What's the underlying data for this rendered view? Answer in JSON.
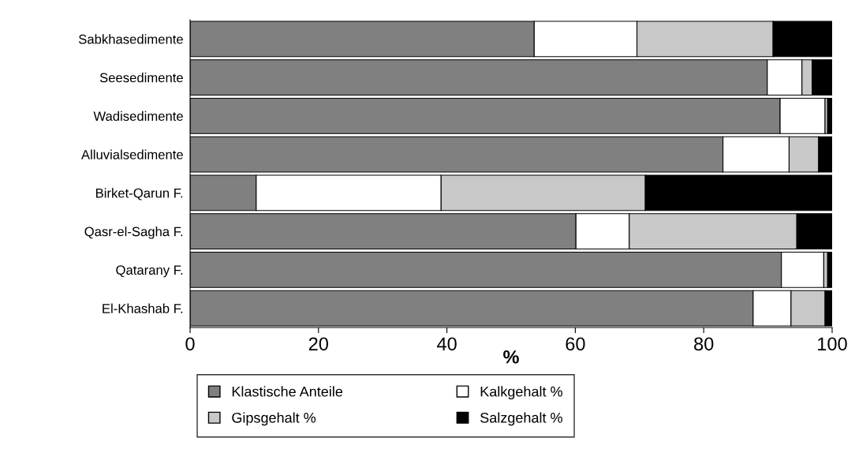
{
  "chart_data": {
    "type": "bar",
    "orientation": "horizontal",
    "stacked": true,
    "xlabel": "%",
    "categories": [
      "Sabkhasedimente",
      "Seesedimente",
      "Wadisedimente",
      "Alluvialsedimente",
      "Birket-Qarun F.",
      "Qasr-el-Sagha F.",
      "Qatarany F.",
      "El-Khashab F."
    ],
    "series": [
      {
        "name": "Klastische Anteile",
        "color": "#808080",
        "values": [
          53.6,
          89.9,
          91.9,
          83.0,
          10.3,
          60.1,
          92.1,
          87.7
        ]
      },
      {
        "name": "Kalkgehalt %",
        "color": "#ffffff",
        "values": [
          16.0,
          5.4,
          7.0,
          10.3,
          28.8,
          8.3,
          6.6,
          5.9
        ]
      },
      {
        "name": "Gipsgehalt %",
        "color": "#c8c8c8",
        "values": [
          21.2,
          1.6,
          0.4,
          4.6,
          31.8,
          26.1,
          0.6,
          5.3
        ]
      },
      {
        "name": "Salzgehalt %",
        "color": "#000000",
        "values": [
          9.2,
          3.1,
          0.7,
          2.1,
          29.1,
          5.5,
          0.7,
          1.1
        ]
      }
    ],
    "xlim": [
      0,
      100
    ],
    "xticks": [
      0,
      20,
      40,
      60,
      80,
      100
    ],
    "grid": false,
    "legend": "bottom"
  }
}
